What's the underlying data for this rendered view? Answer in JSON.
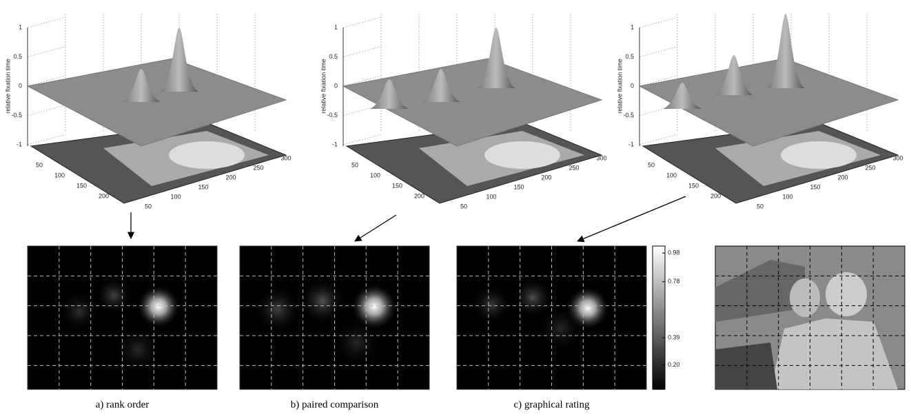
{
  "panels_3d": [
    {
      "z_label": "relative fixation time",
      "z_ticks": [
        "1",
        "0.5",
        "0",
        "-0.5",
        "-1"
      ],
      "x_ticks": [
        "50",
        "100",
        "150",
        "200",
        "250",
        "300"
      ],
      "y_ticks": [
        "50",
        "100",
        "150",
        "200"
      ]
    },
    {
      "z_label": "relative fixation time",
      "z_ticks": [
        "1",
        "0.5",
        "0",
        "-0.5",
        "-1"
      ],
      "x_ticks": [
        "50",
        "100",
        "150",
        "200",
        "250",
        "300"
      ],
      "y_ticks": [
        "50",
        "100",
        "150",
        "200"
      ]
    },
    {
      "z_label": "relative fixation time",
      "z_ticks": [
        "1",
        "0.5",
        "0",
        "-0.5",
        "-1"
      ],
      "x_ticks": [
        "50",
        "100",
        "150",
        "200",
        "250",
        "300"
      ],
      "y_ticks": [
        "50",
        "100",
        "150",
        "200"
      ]
    }
  ],
  "heatmaps": [
    {
      "caption": "a) rank order"
    },
    {
      "caption": "b) paired comparison"
    },
    {
      "caption": "c) graphical rating"
    }
  ],
  "colorbar": {
    "ticks": [
      "0.98",
      "0.78",
      "0.39",
      "0.20"
    ]
  }
}
